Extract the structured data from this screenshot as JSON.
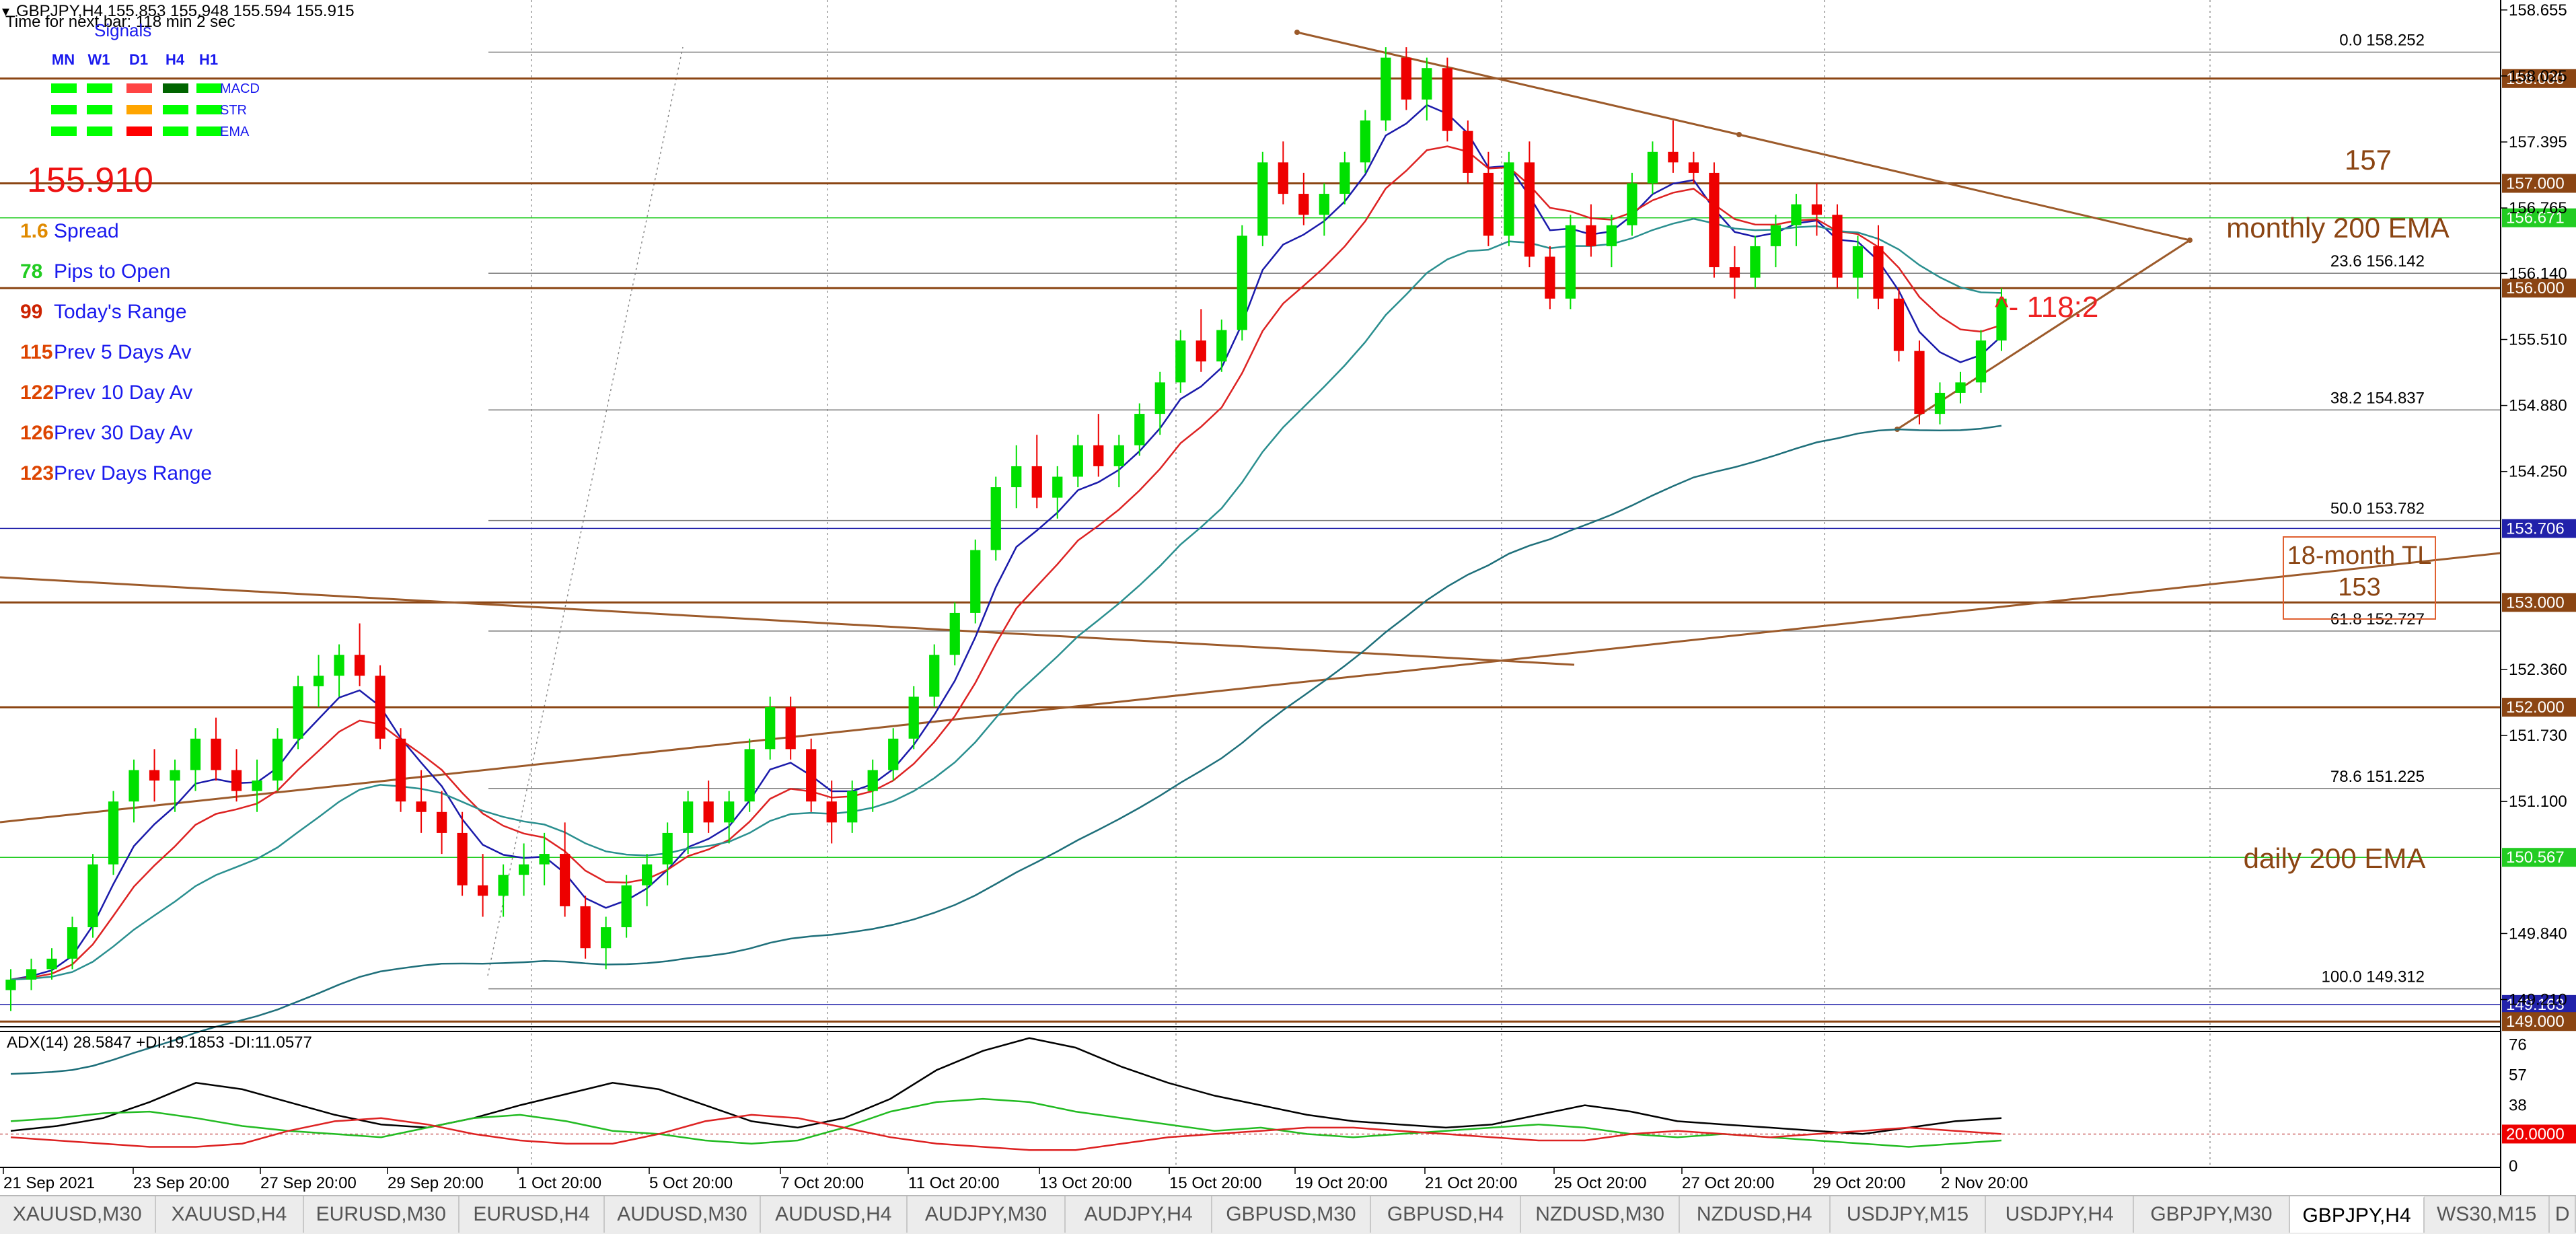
{
  "header": {
    "symbol_line": "GBPJPY,H4  155.853 155.948 155.594 155.915",
    "timer_line": "Time for next bar: 118 min 2 sec"
  },
  "signals": {
    "title": "Signals",
    "timeframes": [
      "MN",
      "W1",
      "D1",
      "H4",
      "H1"
    ],
    "rows": [
      {
        "label": "MACD",
        "colors": [
          "#00ff00",
          "#00ff00",
          "#ff4444",
          "#006400",
          "#00ff00"
        ]
      },
      {
        "label": "STR",
        "colors": [
          "#00ff00",
          "#00ff00",
          "#ffa500",
          "#00ff00",
          "#00ff00"
        ]
      },
      {
        "label": "EMA",
        "colors": [
          "#00ff00",
          "#00ff00",
          "#ff0000",
          "#00ff00",
          "#00ff00"
        ]
      }
    ]
  },
  "stats": {
    "price": "155.910",
    "items": [
      {
        "value": "1.6",
        "label": "Spread",
        "value_color": "#e08a00"
      },
      {
        "value": "78",
        "label": "Pips to Open",
        "value_color": "#22cc22"
      },
      {
        "value": "99",
        "label": "Today's Range",
        "value_color": "#cc2200"
      },
      {
        "value": "115",
        "label": "Prev 5 Days Av",
        "value_color": "#dd4400"
      },
      {
        "value": "122",
        "label": "Prev 10 Day Av",
        "value_color": "#dd4400"
      },
      {
        "value": "126",
        "label": "Prev 30 Day Av",
        "value_color": "#dd4400"
      },
      {
        "value": "123",
        "label": "Prev Days Range",
        "value_color": "#dd4400"
      }
    ]
  },
  "price_axis": {
    "ticks": [
      "158.655",
      "158.025",
      "157.395",
      "156.765",
      "156.140",
      "155.510",
      "154.880",
      "154.250",
      "152.360",
      "151.730",
      "151.100",
      "149.840",
      "149.210"
    ]
  },
  "levels": [
    {
      "price": 158.0,
      "label": "158.000",
      "color": "#8b4513"
    },
    {
      "price": 157.0,
      "label": "157.000",
      "color": "#8b4513"
    },
    {
      "price": 156.671,
      "label": "156.671",
      "color": "#22cc22"
    },
    {
      "price": 156.0,
      "label": "156.000",
      "color": "#8b4513"
    },
    {
      "price": 153.706,
      "label": "153.706",
      "color": "#2222aa"
    },
    {
      "price": 153.0,
      "label": "153.000",
      "color": "#8b4513"
    },
    {
      "price": 152.0,
      "label": "152.000",
      "color": "#8b4513"
    },
    {
      "price": 150.567,
      "label": "150.567",
      "color": "#22cc22"
    },
    {
      "price": 149.163,
      "label": "149.163",
      "color": "#2222aa"
    },
    {
      "price": 149.0,
      "label": "149.000",
      "color": "#8b4513"
    }
  ],
  "fib": [
    {
      "pct": "0.0",
      "price": 158.252,
      "label": "158.252"
    },
    {
      "pct": "23.6",
      "price": 156.142,
      "label": "156.142"
    },
    {
      "pct": "38.2",
      "price": 154.837,
      "label": "154.837"
    },
    {
      "pct": "50.0",
      "price": 153.782,
      "label": "153.782"
    },
    {
      "pct": "61.8",
      "price": 152.727,
      "label": "152.727"
    },
    {
      "pct": "78.6",
      "price": 151.225,
      "label": "151.225"
    },
    {
      "pct": "100.0",
      "price": 149.312,
      "label": "149.312"
    }
  ],
  "annotations": {
    "level_157": "157",
    "monthly_ema": "monthly 200 EMA",
    "ratio": "^- 118:2",
    "tl_line1": "18-month TL",
    "tl_line2": "153",
    "daily_ema": "daily 200 EMA"
  },
  "adx": {
    "title": "ADX(14) 28.5847 +DI:19.1853 -DI:11.0577",
    "ticks": [
      "76",
      "57",
      "38",
      "0"
    ],
    "level_label": "20.0000",
    "level": 20,
    "max": 82
  },
  "time_axis": [
    "21 Sep 2021",
    "23 Sep 20:00",
    "27 Sep 20:00",
    "29 Sep 20:00",
    "1 Oct 20:00",
    "5 Oct 20:00",
    "7 Oct 20:00",
    "11 Oct 20:00",
    "13 Oct 20:00",
    "15 Oct 20:00",
    "19 Oct 20:00",
    "21 Oct 20:00",
    "25 Oct 20:00",
    "27 Oct 20:00",
    "29 Oct 20:00",
    "2 Nov 20:00"
  ],
  "tabs": [
    "XAUUSD,M30",
    "XAUUSD,H4",
    "EURUSD,M30",
    "EURUSD,H4",
    "AUDUSD,M30",
    "AUDUSD,H4",
    "AUDJPY,M30",
    "AUDJPY,H4",
    "GBPUSD,M30",
    "GBPUSD,H4",
    "NZDUSD,M30",
    "NZDUSD,H4",
    "USDJPY,M15",
    "USDJPY,H4",
    "GBPJPY,M30",
    "GBPJPY,H4",
    "WS30,M15",
    "D"
  ],
  "active_tab": "GBPJPY,H4",
  "chart_data": {
    "type": "candlestick",
    "symbol": "GBPJPY",
    "timeframe": "H4",
    "ylim": [
      148.95,
      158.75
    ],
    "ohlc": [
      [
        149.3,
        149.5,
        149.1,
        149.4
      ],
      [
        149.4,
        149.6,
        149.3,
        149.5
      ],
      [
        149.5,
        149.7,
        149.4,
        149.6
      ],
      [
        149.6,
        150.0,
        149.5,
        149.9
      ],
      [
        149.9,
        150.6,
        149.8,
        150.5
      ],
      [
        150.5,
        151.2,
        150.4,
        151.1
      ],
      [
        151.1,
        151.5,
        150.9,
        151.4
      ],
      [
        151.4,
        151.6,
        151.1,
        151.3
      ],
      [
        151.3,
        151.5,
        151.0,
        151.4
      ],
      [
        151.4,
        151.8,
        151.2,
        151.7
      ],
      [
        151.7,
        151.9,
        151.3,
        151.4
      ],
      [
        151.4,
        151.6,
        151.1,
        151.2
      ],
      [
        151.2,
        151.5,
        151.0,
        151.3
      ],
      [
        151.3,
        151.8,
        151.2,
        151.7
      ],
      [
        151.7,
        152.3,
        151.6,
        152.2
      ],
      [
        152.2,
        152.5,
        152.0,
        152.3
      ],
      [
        152.3,
        152.6,
        152.1,
        152.5
      ],
      [
        152.5,
        152.8,
        152.2,
        152.3
      ],
      [
        152.3,
        152.4,
        151.6,
        151.7
      ],
      [
        151.7,
        151.8,
        151.0,
        151.1
      ],
      [
        151.1,
        151.4,
        150.8,
        151.0
      ],
      [
        151.0,
        151.2,
        150.6,
        150.8
      ],
      [
        150.8,
        151.0,
        150.2,
        150.3
      ],
      [
        150.3,
        150.6,
        150.0,
        150.2
      ],
      [
        150.2,
        150.5,
        150.0,
        150.4
      ],
      [
        150.4,
        150.7,
        150.2,
        150.5
      ],
      [
        150.5,
        150.8,
        150.3,
        150.6
      ],
      [
        150.6,
        150.9,
        150.0,
        150.1
      ],
      [
        150.1,
        150.2,
        149.6,
        149.7
      ],
      [
        149.7,
        150.0,
        149.5,
        149.9
      ],
      [
        149.9,
        150.4,
        149.8,
        150.3
      ],
      [
        150.3,
        150.6,
        150.1,
        150.5
      ],
      [
        150.5,
        150.9,
        150.3,
        150.8
      ],
      [
        150.8,
        151.2,
        150.6,
        151.1
      ],
      [
        151.1,
        151.3,
        150.8,
        150.9
      ],
      [
        150.9,
        151.2,
        150.7,
        151.1
      ],
      [
        151.1,
        151.7,
        151.0,
        151.6
      ],
      [
        151.6,
        152.1,
        151.5,
        152.0
      ],
      [
        152.0,
        152.1,
        151.5,
        151.6
      ],
      [
        151.6,
        151.7,
        151.0,
        151.1
      ],
      [
        151.1,
        151.3,
        150.7,
        150.9
      ],
      [
        150.9,
        151.3,
        150.8,
        151.2
      ],
      [
        151.2,
        151.5,
        151.0,
        151.4
      ],
      [
        151.4,
        151.8,
        151.3,
        151.7
      ],
      [
        151.7,
        152.2,
        151.6,
        152.1
      ],
      [
        152.1,
        152.6,
        152.0,
        152.5
      ],
      [
        152.5,
        153.0,
        152.4,
        152.9
      ],
      [
        152.9,
        153.6,
        152.8,
        153.5
      ],
      [
        153.5,
        154.2,
        153.4,
        154.1
      ],
      [
        154.1,
        154.5,
        153.9,
        154.3
      ],
      [
        154.3,
        154.6,
        153.9,
        154.0
      ],
      [
        154.0,
        154.3,
        153.8,
        154.2
      ],
      [
        154.2,
        154.6,
        154.1,
        154.5
      ],
      [
        154.5,
        154.8,
        154.2,
        154.3
      ],
      [
        154.3,
        154.6,
        154.1,
        154.5
      ],
      [
        154.5,
        154.9,
        154.4,
        154.8
      ],
      [
        154.8,
        155.2,
        154.6,
        155.1
      ],
      [
        155.1,
        155.6,
        155.0,
        155.5
      ],
      [
        155.5,
        155.8,
        155.2,
        155.3
      ],
      [
        155.3,
        155.7,
        155.2,
        155.6
      ],
      [
        155.6,
        156.6,
        155.5,
        156.5
      ],
      [
        156.5,
        157.3,
        156.4,
        157.2
      ],
      [
        157.2,
        157.4,
        156.8,
        156.9
      ],
      [
        156.9,
        157.1,
        156.6,
        156.7
      ],
      [
        156.7,
        157.0,
        156.5,
        156.9
      ],
      [
        156.9,
        157.3,
        156.8,
        157.2
      ],
      [
        157.2,
        157.7,
        157.1,
        157.6
      ],
      [
        157.6,
        158.3,
        157.5,
        158.2
      ],
      [
        158.2,
        158.3,
        157.7,
        157.8
      ],
      [
        157.8,
        158.2,
        157.6,
        158.1
      ],
      [
        158.1,
        158.2,
        157.4,
        157.5
      ],
      [
        157.5,
        157.6,
        157.0,
        157.1
      ],
      [
        157.1,
        157.3,
        156.4,
        156.5
      ],
      [
        156.5,
        157.3,
        156.4,
        157.2
      ],
      [
        157.2,
        157.4,
        156.2,
        156.3
      ],
      [
        156.3,
        156.4,
        155.8,
        155.9
      ],
      [
        155.9,
        156.7,
        155.8,
        156.6
      ],
      [
        156.6,
        156.8,
        156.3,
        156.4
      ],
      [
        156.4,
        156.7,
        156.2,
        156.6
      ],
      [
        156.6,
        157.1,
        156.5,
        157.0
      ],
      [
        157.0,
        157.4,
        156.9,
        157.3
      ],
      [
        157.3,
        157.6,
        157.1,
        157.2
      ],
      [
        157.2,
        157.3,
        157.0,
        157.1
      ],
      [
        157.1,
        157.2,
        156.1,
        156.2
      ],
      [
        156.2,
        156.4,
        155.9,
        156.1
      ],
      [
        156.1,
        156.5,
        156.0,
        156.4
      ],
      [
        156.4,
        156.7,
        156.2,
        156.6
      ],
      [
        156.6,
        156.9,
        156.4,
        156.8
      ],
      [
        156.8,
        157.0,
        156.5,
        156.7
      ],
      [
        156.7,
        156.8,
        156.0,
        156.1
      ],
      [
        156.1,
        156.5,
        155.9,
        156.4
      ],
      [
        156.4,
        156.6,
        155.8,
        155.9
      ],
      [
        155.9,
        156.0,
        155.3,
        155.4
      ],
      [
        155.4,
        155.5,
        154.7,
        154.8
      ],
      [
        154.8,
        155.1,
        154.7,
        155.0
      ],
      [
        155.0,
        155.2,
        154.9,
        155.1
      ],
      [
        155.1,
        155.6,
        155.0,
        155.5
      ],
      [
        155.5,
        156.0,
        155.4,
        155.9
      ]
    ],
    "adx_values": [
      [
        22,
        28,
        18
      ],
      [
        25,
        30,
        16
      ],
      [
        30,
        33,
        14
      ],
      [
        40,
        34,
        12
      ],
      [
        52,
        30,
        12
      ],
      [
        48,
        25,
        14
      ],
      [
        40,
        22,
        22
      ],
      [
        32,
        20,
        28
      ],
      [
        26,
        18,
        30
      ],
      [
        24,
        24,
        26
      ],
      [
        30,
        30,
        20
      ],
      [
        38,
        32,
        16
      ],
      [
        45,
        28,
        14
      ],
      [
        52,
        22,
        14
      ],
      [
        48,
        20,
        20
      ],
      [
        38,
        16,
        28
      ],
      [
        28,
        14,
        32
      ],
      [
        24,
        16,
        30
      ],
      [
        30,
        24,
        24
      ],
      [
        42,
        34,
        18
      ],
      [
        60,
        40,
        14
      ],
      [
        72,
        42,
        12
      ],
      [
        80,
        40,
        10
      ],
      [
        74,
        34,
        10
      ],
      [
        62,
        30,
        14
      ],
      [
        52,
        26,
        18
      ],
      [
        44,
        22,
        20
      ],
      [
        38,
        24,
        22
      ],
      [
        32,
        20,
        24
      ],
      [
        28,
        18,
        24
      ],
      [
        26,
        20,
        22
      ],
      [
        24,
        22,
        20
      ],
      [
        26,
        24,
        18
      ],
      [
        32,
        26,
        16
      ],
      [
        38,
        24,
        16
      ],
      [
        34,
        20,
        20
      ],
      [
        28,
        18,
        22
      ],
      [
        26,
        20,
        20
      ],
      [
        24,
        18,
        18
      ],
      [
        22,
        16,
        20
      ],
      [
        20,
        14,
        22
      ],
      [
        24,
        12,
        24
      ],
      [
        28,
        14,
        22
      ],
      [
        30,
        16,
        20
      ]
    ]
  }
}
